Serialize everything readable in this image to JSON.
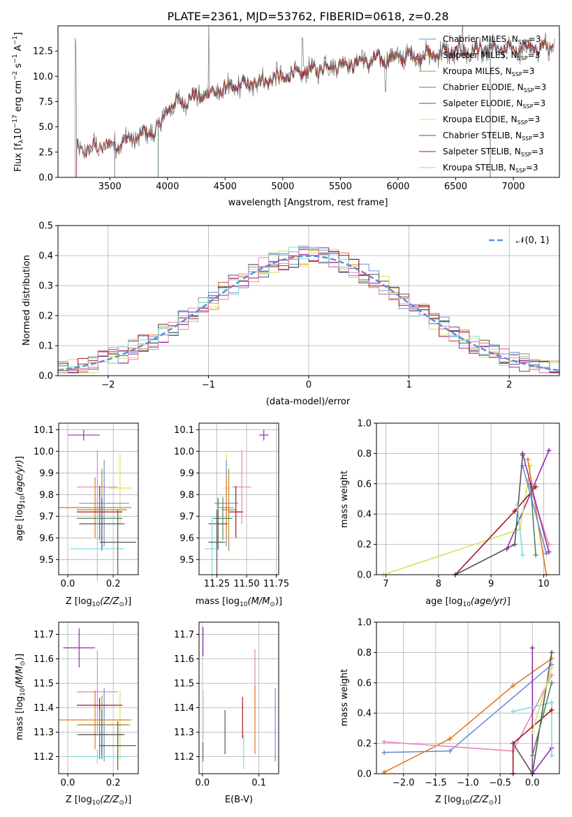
{
  "colors": {
    "Chabrier MILES": "#6b8fd6",
    "Salpeter MILES": "#e07b20",
    "Kroupa MILES": "#b5892a",
    "Chabrier ELODIE": "#4f8a5a",
    "Salpeter ELODIE": "#8e2fa6",
    "Kroupa ELODIE": "#d7e256",
    "Chabrier STELIB": "#555555",
    "Salpeter STELIB": "#a5141f",
    "Kroupa STELIB": "#7fd9dc",
    "pink": "#e887b8"
  },
  "chart_data": [
    {
      "id": "spectrum",
      "type": "line",
      "title": "PLATE=2361, MJD=53762, FIBERID=0618, z=0.28",
      "xlabel": "wavelength [Angstrom, rest frame]",
      "ylabel": "Flux [f",
      "xlim": [
        3050,
        7400
      ],
      "ylim": [
        0,
        15
      ],
      "xticks": [
        "3500",
        "4000",
        "4500",
        "5000",
        "5500",
        "6000",
        "6500",
        "7000"
      ],
      "xtick_values": [
        3500,
        4000,
        4500,
        5000,
        5500,
        6000,
        6500,
        7000
      ],
      "yticks": [
        "0.0",
        "2.5",
        "5.0",
        "7.5",
        "10.0",
        "12.5"
      ],
      "ytick_values": [
        0,
        2.5,
        5,
        7.5,
        10,
        12.5
      ],
      "legend": [
        {
          "name": "Chabrier MILES",
          "ssp": "=3"
        },
        {
          "name": "Salpeter MILES",
          "ssp": "=3"
        },
        {
          "name": "Kroupa MILES",
          "ssp": "=3"
        },
        {
          "name": "Chabrier ELODIE",
          "ssp": "=3"
        },
        {
          "name": "Salpeter ELODIE",
          "ssp": "=3"
        },
        {
          "name": "Kroupa ELODIE",
          "ssp": "=3"
        },
        {
          "name": "Chabrier STELIB",
          "ssp": "=3"
        },
        {
          "name": "Salpeter STELIB",
          "ssp": "=3"
        },
        {
          "name": "Kroupa STELIB",
          "ssp": "=3"
        }
      ],
      "legend_position": "right",
      "continuum": [
        [
          3210,
          2.6
        ],
        [
          3400,
          3.0
        ],
        [
          3600,
          3.5
        ],
        [
          3800,
          4.3
        ],
        [
          3900,
          4.6
        ],
        [
          3960,
          5.5
        ],
        [
          4000,
          7.0
        ],
        [
          4200,
          7.8
        ],
        [
          4400,
          8.4
        ],
        [
          4600,
          9.0
        ],
        [
          4800,
          9.5
        ],
        [
          5000,
          9.9
        ],
        [
          5200,
          10.5
        ],
        [
          5400,
          11.0
        ],
        [
          5600,
          11.3
        ],
        [
          5800,
          11.6
        ],
        [
          6000,
          11.9
        ],
        [
          6200,
          12.1
        ],
        [
          6400,
          12.3
        ],
        [
          6600,
          12.5
        ],
        [
          6800,
          12.6
        ],
        [
          7000,
          12.7
        ],
        [
          7200,
          12.8
        ],
        [
          7350,
          12.9
        ]
      ]
    },
    {
      "id": "residuals",
      "type": "histogram",
      "xlabel": "(data-model)/error",
      "ylabel": "Normed distribution",
      "xlim": [
        -2.5,
        2.5
      ],
      "ylim": [
        0,
        0.5
      ],
      "xticks": [
        "−2",
        "−1",
        "0",
        "1",
        "2"
      ],
      "xtick_values": [
        -2,
        -1,
        0,
        1,
        2
      ],
      "yticks": [
        "0.0",
        "0.1",
        "0.2",
        "0.3",
        "0.4",
        "0.5"
      ],
      "ytick_values": [
        0,
        0.1,
        0.2,
        0.3,
        0.4,
        0.5
      ],
      "grid": true,
      "legend": "𝒩(0, 1)",
      "legend_position": "top-right",
      "bin_width": 0.1
    },
    {
      "id": "age_vs_Z",
      "type": "errorbar",
      "xlabel": "Z [log",
      "ylabel": "age  [log",
      "xlim": [
        -0.04,
        0.31
      ],
      "ylim": [
        9.43,
        10.13
      ],
      "xticks": [
        "0.0",
        "0.2"
      ],
      "xtick_values": [
        0,
        0.2
      ],
      "yticks": [
        "9.5",
        "9.6",
        "9.7",
        "9.8",
        "9.9",
        "10.0",
        "10.1"
      ],
      "ytick_values": [
        9.5,
        9.6,
        9.7,
        9.8,
        9.9,
        10.0,
        10.1
      ],
      "grid": true
    },
    {
      "id": "age_vs_mass",
      "type": "errorbar",
      "xlabel": "mass [log",
      "xlim": [
        11.1,
        11.77
      ],
      "ylim": [
        9.43,
        10.13
      ],
      "xticks": [
        "11.25",
        "11.50",
        "11.75"
      ],
      "xtick_values": [
        11.25,
        11.5,
        11.75
      ],
      "yticks": [
        "9.5",
        "9.6",
        "9.7",
        "9.8",
        "9.9",
        "10.0",
        "10.1"
      ],
      "ytick_values": [
        9.5,
        9.6,
        9.7,
        9.8,
        9.9,
        10.0,
        10.1
      ],
      "grid": true
    },
    {
      "id": "massweight_vs_age",
      "type": "line",
      "xlabel": "age  [log",
      "ylabel": "mass weight",
      "xlim": [
        6.82,
        10.3
      ],
      "ylim": [
        0,
        1
      ],
      "xticks": [
        "7",
        "8",
        "9",
        "10"
      ],
      "xtick_values": [
        7,
        8,
        9,
        10
      ],
      "yticks": [
        "0.0",
        "0.2",
        "0.4",
        "0.6",
        "0.8",
        "1.0"
      ],
      "ytick_values": [
        0,
        0.2,
        0.4,
        0.6,
        0.8,
        1.0
      ],
      "grid": true
    },
    {
      "id": "mass_vs_Z",
      "type": "errorbar",
      "xlabel": "Z [log",
      "ylabel": "mass [log",
      "xlim": [
        -0.04,
        0.31
      ],
      "ylim": [
        11.13,
        11.75
      ],
      "xticks": [
        "0.0",
        "0.2"
      ],
      "xtick_values": [
        0,
        0.2
      ],
      "yticks": [
        "11.2",
        "11.3",
        "11.4",
        "11.5",
        "11.6",
        "11.7"
      ],
      "ytick_values": [
        11.2,
        11.3,
        11.4,
        11.5,
        11.6,
        11.7
      ],
      "grid": true
    },
    {
      "id": "mass_vs_EBV",
      "type": "errorbar",
      "xlabel": "E(B-V)",
      "xlim": [
        -0.006,
        0.135
      ],
      "ylim": [
        11.13,
        11.75
      ],
      "xticks": [
        "0.0",
        "0.1"
      ],
      "xtick_values": [
        0,
        0.1
      ],
      "yticks": [
        "11.2",
        "11.3",
        "11.4",
        "11.5",
        "11.6",
        "11.7"
      ],
      "ytick_values": [
        11.2,
        11.3,
        11.4,
        11.5,
        11.6,
        11.7
      ],
      "grid": true
    },
    {
      "id": "massweight_vs_Z",
      "type": "line",
      "xlabel": "Z [log",
      "ylabel": "mass weight",
      "xlim": [
        -2.42,
        0.42
      ],
      "ylim": [
        0,
        1
      ],
      "xticks": [
        "−2.0",
        "−1.5",
        "−1.0",
        "−0.5",
        "0.0"
      ],
      "xtick_values": [
        -2,
        -1.5,
        -1,
        -0.5,
        0
      ],
      "yticks": [
        "0.0",
        "0.2",
        "0.4",
        "0.6",
        "0.8",
        "1.0"
      ],
      "ytick_values": [
        0,
        0.2,
        0.4,
        0.6,
        0.8,
        1.0
      ],
      "grid": true
    }
  ],
  "errorbars_ageZ": [
    {
      "c": "Salpeter ELODIE",
      "x": 0.07,
      "xe": 0.07,
      "y": 10.075,
      "ye": 0.025
    },
    {
      "c": "pink",
      "x": 0.13,
      "xe": 0.09,
      "y": 9.835,
      "ye": 0.17
    },
    {
      "c": "Kroupa ELODIE",
      "x": 0.23,
      "xe": 0.05,
      "y": 9.83,
      "ye": 0.16
    },
    {
      "c": "Chabrier MILES",
      "x": 0.16,
      "xe": 0.11,
      "y": 9.76,
      "ye": 0.2
    },
    {
      "c": "Salpeter MILES",
      "x": 0.12,
      "xe": 0.16,
      "y": 9.74,
      "ye": 0.14
    },
    {
      "c": "Kroupa MILES",
      "x": 0.15,
      "xe": 0.11,
      "y": 9.73,
      "ye": 0.19
    },
    {
      "c": "Salpeter STELIB",
      "x": 0.14,
      "xe": 0.1,
      "y": 9.72,
      "ye": 0.12
    },
    {
      "c": "Chabrier ELODIE",
      "x": 0.14,
      "xe": 0.1,
      "y": 9.69,
      "ye": 0.1
    },
    {
      "c": "Chabrier STELIB",
      "x": 0.15,
      "xe": 0.1,
      "y": 9.665,
      "ye": 0.12
    },
    {
      "c": "Kroupa STELIB",
      "x": 0.13,
      "xe": 0.12,
      "y": 9.55,
      "ye": 0.15
    },
    {
      "c": "Chabrier STELIB",
      "x": 0.22,
      "xe": 0.08,
      "y": 9.58,
      "ye": 0.15
    }
  ],
  "errorbars_ageMass": [
    {
      "c": "Salpeter ELODIE",
      "x": 11.645,
      "xe": 0.04,
      "y": 10.075,
      "ye": 0.025
    },
    {
      "c": "pink",
      "x": 11.46,
      "xe": 0.08,
      "y": 9.835,
      "ye": 0.17
    },
    {
      "c": "Kroupa ELODIE",
      "x": 11.33,
      "xe": 0.03,
      "y": 9.83,
      "ye": 0.16
    },
    {
      "c": "Chabrier MILES",
      "x": 11.33,
      "xe": 0.1,
      "y": 9.76,
      "ye": 0.2
    },
    {
      "c": "Salpeter MILES",
      "x": 11.33,
      "xe": 0.06,
      "y": 9.74,
      "ye": 0.14
    },
    {
      "c": "Kroupa MILES",
      "x": 11.35,
      "xe": 0.06,
      "y": 9.73,
      "ye": 0.19
    },
    {
      "c": "Salpeter STELIB",
      "x": 11.41,
      "xe": 0.06,
      "y": 9.72,
      "ye": 0.12
    },
    {
      "c": "Chabrier ELODIE",
      "x": 11.3,
      "xe": 0.08,
      "y": 9.69,
      "ye": 0.1
    },
    {
      "c": "Chabrier STELIB",
      "x": 11.26,
      "xe": 0.08,
      "y": 9.665,
      "ye": 0.12
    },
    {
      "c": "Kroupa STELIB",
      "x": 11.21,
      "xe": 0.06,
      "y": 9.55,
      "ye": 0.15
    },
    {
      "c": "Chabrier STELIB",
      "x": 11.25,
      "xe": 0.07,
      "y": 9.58,
      "ye": 0.15
    }
  ],
  "errorbars_massZ": [
    {
      "c": "Salpeter ELODIE",
      "x": 0.05,
      "xe": 0.07,
      "y": 11.645,
      "ye": 0.08
    },
    {
      "c": "pink",
      "x": 0.13,
      "xe": 0.09,
      "y": 11.465,
      "ye": 0.17
    },
    {
      "c": "Kroupa ELODIE",
      "x": 0.23,
      "xe": 0.05,
      "y": 11.33,
      "ye": 0.14
    },
    {
      "c": "Chabrier MILES",
      "x": 0.16,
      "xe": 0.11,
      "y": 11.33,
      "ye": 0.15
    },
    {
      "c": "Salpeter MILES",
      "x": 0.12,
      "xe": 0.16,
      "y": 11.35,
      "ye": 0.12
    },
    {
      "c": "Kroupa MILES",
      "x": 0.15,
      "xe": 0.11,
      "y": 11.33,
      "ye": 0.12
    },
    {
      "c": "Salpeter STELIB",
      "x": 0.14,
      "xe": 0.1,
      "y": 11.41,
      "ye": 0.03
    },
    {
      "c": "Chabrier ELODIE",
      "x": 0.14,
      "xe": 0.1,
      "y": 11.29,
      "ye": 0.1
    },
    {
      "c": "Chabrier STELIB",
      "x": 0.15,
      "xe": 0.1,
      "y": 11.29,
      "ye": 0.1
    },
    {
      "c": "Kroupa STELIB",
      "x": 0.13,
      "xe": 0.12,
      "y": 11.2,
      "ye": 0.03
    },
    {
      "c": "Chabrier STELIB",
      "x": 0.22,
      "xe": 0.08,
      "y": 11.245,
      "ye": 0.1
    }
  ],
  "errorbars_massEBV": [
    {
      "c": "Salpeter ELODIE",
      "x": 0.001,
      "y": 11.67,
      "ye": 0.06
    },
    {
      "c": "Kroupa ELODIE",
      "x": 0.002,
      "y": 11.37,
      "ye": 0.1
    },
    {
      "c": "Chabrier STELIB",
      "x": 0.04,
      "y": 11.3,
      "ye": 0.09
    },
    {
      "c": "Salpeter STELIB",
      "x": 0.071,
      "y": 11.36,
      "ye": 0.085
    },
    {
      "c": "Kroupa STELIB",
      "x": 0.073,
      "y": 11.22,
      "ye": 0.07
    },
    {
      "c": "pink",
      "x": 0.093,
      "y": 11.5,
      "ye": 0.14
    },
    {
      "c": "Salpeter MILES",
      "x": 0.093,
      "y": 11.35,
      "ye": 0.14
    },
    {
      "c": "Chabrier MILES",
      "x": 0.129,
      "y": 11.33,
      "ye": 0.15
    },
    {
      "c": "Chabrier ELODIE",
      "x": 0.001,
      "y": 11.22,
      "ye": 0.04
    }
  ],
  "mw_age": [
    {
      "c": "Salpeter ELODIE",
      "pts": [
        [
          9.3,
          0.17
        ],
        [
          10.1,
          0.82
        ]
      ]
    },
    {
      "c": "Kroupa ELODIE",
      "pts": [
        [
          6.95,
          0.0
        ],
        [
          9.55,
          0.3
        ],
        [
          9.75,
          0.72
        ]
      ]
    },
    {
      "c": "Salpeter STELIB",
      "pts": [
        [
          8.32,
          0.0
        ],
        [
          9.45,
          0.42
        ],
        [
          9.85,
          0.58
        ]
      ]
    },
    {
      "c": "Chabrier STELIB",
      "pts": [
        [
          8.32,
          0.0
        ],
        [
          9.45,
          0.2
        ],
        [
          9.6,
          0.79
        ]
      ]
    },
    {
      "c": "Salpeter MILES",
      "pts": [
        [
          9.7,
          0.76
        ],
        [
          10.05,
          0.0
        ]
      ]
    },
    {
      "c": "Chabrier MILES",
      "pts": [
        [
          9.6,
          0.72
        ],
        [
          10.05,
          0.14
        ]
      ]
    },
    {
      "c": "pink",
      "pts": [
        [
          9.7,
          0.62
        ],
        [
          10.1,
          0.2
        ]
      ]
    },
    {
      "c": "Chabrier ELODIE",
      "pts": [
        [
          9.75,
          0.6
        ],
        [
          9.85,
          0.13
        ]
      ]
    },
    {
      "c": "Kroupa STELIB",
      "pts": [
        [
          9.5,
          0.46
        ],
        [
          9.6,
          0.13
        ]
      ]
    },
    {
      "c": "Salpeter ELODIE",
      "pts": [
        [
          9.6,
          0.8
        ],
        [
          10.1,
          0.15
        ]
      ]
    }
  ],
  "mw_Z": [
    {
      "c": "Salpeter MILES",
      "pts": [
        [
          -2.3,
          0.01
        ],
        [
          -1.28,
          0.23
        ],
        [
          -0.3,
          0.58
        ],
        [
          0.3,
          0.76
        ]
      ]
    },
    {
      "c": "Chabrier MILES",
      "pts": [
        [
          -2.3,
          0.14
        ],
        [
          -1.28,
          0.15
        ],
        [
          0.3,
          0.72
        ]
      ]
    },
    {
      "c": "pink",
      "pts": [
        [
          -2.3,
          0.21
        ],
        [
          -0.3,
          0.15
        ],
        [
          0.3,
          0.65
        ]
      ]
    },
    {
      "c": "Salpeter ELODIE",
      "pts": [
        [
          0.0,
          0.83
        ],
        [
          0.0,
          0.0
        ],
        [
          0.3,
          0.17
        ]
      ]
    },
    {
      "c": "Kroupa STELIB",
      "pts": [
        [
          -0.3,
          0.41
        ],
        [
          0.3,
          0.47
        ],
        [
          0.3,
          0.12
        ]
      ]
    },
    {
      "c": "Salpeter STELIB",
      "pts": [
        [
          -0.3,
          0.0
        ],
        [
          -0.3,
          0.2
        ],
        [
          0.3,
          0.42
        ]
      ]
    },
    {
      "c": "Chabrier STELIB",
      "pts": [
        [
          -0.3,
          0.2
        ],
        [
          0.0,
          0.0
        ],
        [
          0.3,
          0.8
        ]
      ]
    },
    {
      "c": "Kroupa ELODIE",
      "pts": [
        [
          0.0,
          0.28
        ],
        [
          0.3,
          0.7
        ]
      ]
    },
    {
      "c": "Chabrier ELODIE",
      "pts": [
        [
          0.0,
          0.12
        ],
        [
          0.3,
          0.6
        ]
      ]
    }
  ]
}
